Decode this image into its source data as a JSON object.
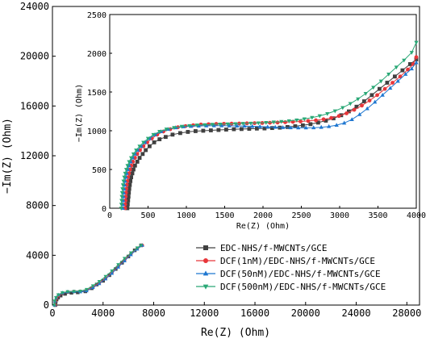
{
  "chart_data": {
    "type": "scatter",
    "main": {
      "xlabel": "Re(Z) (Ohm)",
      "ylabel": "−Im(Z) (Ohm)",
      "xlim": [
        0,
        29000
      ],
      "ylim": [
        0,
        24000
      ],
      "xticks": [
        "0",
        "4000",
        "8000",
        "12000",
        "16000",
        "20000",
        "24000",
        "28000"
      ],
      "yticks": [
        "0",
        "4000",
        "8000",
        "12000",
        "16000",
        "20000",
        "24000"
      ]
    },
    "inset": {
      "xlabel": "Re(Z) (Ohm)",
      "ylabel": "−Im(Z) (Ohm)",
      "xlim": [
        0,
        4000
      ],
      "ylim": [
        0,
        2500
      ],
      "xticks": [
        "0",
        "500",
        "1000",
        "1500",
        "2000",
        "2500",
        "3000",
        "3500",
        "4000"
      ],
      "yticks": [
        "0",
        "500",
        "1000",
        "1500",
        "2000",
        "2500"
      ]
    },
    "legend": {
      "position": "bottom-right"
    },
    "series": [
      {
        "name": "EDC-NHS/f-MWCNTs/GCE",
        "color": "#404040",
        "marker": "square",
        "main_points": [
          [
            230,
            0
          ],
          [
            260,
            250
          ],
          [
            330,
            450
          ],
          [
            450,
            600
          ],
          [
            650,
            760
          ],
          [
            1000,
            900
          ],
          [
            1500,
            990
          ],
          [
            2000,
            1020
          ],
          [
            2600,
            1100
          ],
          [
            3100,
            1350
          ],
          [
            3500,
            1650
          ],
          [
            4000,
            1950
          ],
          [
            4500,
            2400
          ],
          [
            5000,
            2900
          ],
          [
            5500,
            3400
          ],
          [
            6000,
            3900
          ],
          [
            6500,
            4400
          ],
          [
            7000,
            4800
          ]
        ],
        "inset_points": [
          [
            230,
            0
          ],
          [
            235,
            50
          ],
          [
            240,
            100
          ],
          [
            245,
            150
          ],
          [
            250,
            200
          ],
          [
            255,
            250
          ],
          [
            262,
            300
          ],
          [
            270,
            350
          ],
          [
            280,
            400
          ],
          [
            295,
            450
          ],
          [
            310,
            500
          ],
          [
            330,
            550
          ],
          [
            360,
            600
          ],
          [
            390,
            650
          ],
          [
            430,
            700
          ],
          [
            470,
            750
          ],
          [
            520,
            800
          ],
          [
            580,
            850
          ],
          [
            650,
            890
          ],
          [
            730,
            920
          ],
          [
            820,
            950
          ],
          [
            920,
            970
          ],
          [
            1020,
            985
          ],
          [
            1120,
            995
          ],
          [
            1220,
            1000
          ],
          [
            1320,
            1005
          ],
          [
            1420,
            1010
          ],
          [
            1520,
            1015
          ],
          [
            1620,
            1020
          ],
          [
            1720,
            1022
          ],
          [
            1820,
            1025
          ],
          [
            1920,
            1028
          ],
          [
            2020,
            1030
          ],
          [
            2120,
            1035
          ],
          [
            2220,
            1040
          ],
          [
            2320,
            1048
          ],
          [
            2420,
            1058
          ],
          [
            2520,
            1070
          ],
          [
            2620,
            1085
          ],
          [
            2720,
            1105
          ],
          [
            2820,
            1130
          ],
          [
            2920,
            1160
          ],
          [
            3020,
            1200
          ],
          [
            3120,
            1250
          ],
          [
            3220,
            1310
          ],
          [
            3320,
            1380
          ],
          [
            3420,
            1460
          ],
          [
            3520,
            1540
          ],
          [
            3620,
            1620
          ],
          [
            3720,
            1700
          ],
          [
            3820,
            1780
          ],
          [
            3920,
            1860
          ],
          [
            4000,
            1920
          ]
        ]
      },
      {
        "name": "DCF(1nM)/EDC-NHS/f-MWCNTs/GCE",
        "color": "#e8363a",
        "marker": "circle",
        "main_points": [
          [
            200,
            0
          ],
          [
            230,
            300
          ],
          [
            330,
            560
          ],
          [
            500,
            780
          ],
          [
            800,
            960
          ],
          [
            1200,
            1060
          ],
          [
            1700,
            1090
          ],
          [
            2200,
            1110
          ],
          [
            2700,
            1200
          ],
          [
            3200,
            1450
          ],
          [
            3700,
            1780
          ],
          [
            4200,
            2150
          ],
          [
            4700,
            2600
          ],
          [
            5200,
            3100
          ],
          [
            5700,
            3600
          ],
          [
            6200,
            4100
          ],
          [
            6700,
            4550
          ],
          [
            7100,
            4800
          ]
        ],
        "inset_points": [
          [
            200,
            0
          ],
          [
            202,
            50
          ],
          [
            205,
            100
          ],
          [
            208,
            150
          ],
          [
            212,
            200
          ],
          [
            217,
            250
          ],
          [
            223,
            300
          ],
          [
            230,
            350
          ],
          [
            240,
            400
          ],
          [
            252,
            450
          ],
          [
            266,
            500
          ],
          [
            283,
            550
          ],
          [
            303,
            600
          ],
          [
            330,
            650
          ],
          [
            360,
            700
          ],
          [
            395,
            750
          ],
          [
            440,
            800
          ],
          [
            490,
            850
          ],
          [
            550,
            900
          ],
          [
            620,
            950
          ],
          [
            700,
            990
          ],
          [
            790,
            1020
          ],
          [
            890,
            1045
          ],
          [
            990,
            1060
          ],
          [
            1090,
            1072
          ],
          [
            1190,
            1080
          ],
          [
            1290,
            1085
          ],
          [
            1390,
            1088
          ],
          [
            1490,
            1090
          ],
          [
            1590,
            1092
          ],
          [
            1690,
            1094
          ],
          [
            1790,
            1096
          ],
          [
            1890,
            1098
          ],
          [
            1990,
            1100
          ],
          [
            2090,
            1103
          ],
          [
            2190,
            1106
          ],
          [
            2290,
            1110
          ],
          [
            2390,
            1115
          ],
          [
            2490,
            1120
          ],
          [
            2590,
            1126
          ],
          [
            2690,
            1135
          ],
          [
            2790,
            1148
          ],
          [
            2890,
            1165
          ],
          [
            2990,
            1190
          ],
          [
            3090,
            1225
          ],
          [
            3190,
            1270
          ],
          [
            3290,
            1325
          ],
          [
            3390,
            1390
          ],
          [
            3490,
            1460
          ],
          [
            3590,
            1540
          ],
          [
            3690,
            1620
          ],
          [
            3790,
            1700
          ],
          [
            3890,
            1790
          ],
          [
            3960,
            1860
          ],
          [
            4000,
            1950
          ]
        ]
      },
      {
        "name": "DCF(50nM)/EDC-NHS/f-MWCNTs/GCE",
        "color": "#1f77d0",
        "marker": "triangle-up",
        "main_points": [
          [
            170,
            0
          ],
          [
            200,
            320
          ],
          [
            300,
            600
          ],
          [
            480,
            820
          ],
          [
            800,
            980
          ],
          [
            1200,
            1060
          ],
          [
            1700,
            1080
          ],
          [
            2200,
            1060
          ],
          [
            2700,
            1140
          ],
          [
            3200,
            1400
          ],
          [
            3700,
            1720
          ],
          [
            4200,
            2100
          ],
          [
            4700,
            2550
          ],
          [
            5200,
            3050
          ],
          [
            5700,
            3550
          ],
          [
            6200,
            4050
          ],
          [
            6700,
            4500
          ],
          [
            7100,
            4800
          ]
        ],
        "inset_points": [
          [
            170,
            0
          ],
          [
            172,
            50
          ],
          [
            175,
            100
          ],
          [
            178,
            150
          ],
          [
            182,
            200
          ],
          [
            187,
            250
          ],
          [
            193,
            300
          ],
          [
            200,
            350
          ],
          [
            210,
            400
          ],
          [
            222,
            450
          ],
          [
            236,
            500
          ],
          [
            253,
            550
          ],
          [
            273,
            600
          ],
          [
            300,
            650
          ],
          [
            330,
            700
          ],
          [
            365,
            750
          ],
          [
            410,
            800
          ],
          [
            460,
            850
          ],
          [
            520,
            900
          ],
          [
            590,
            950
          ],
          [
            670,
            990
          ],
          [
            760,
            1020
          ],
          [
            860,
            1040
          ],
          [
            960,
            1052
          ],
          [
            1060,
            1058
          ],
          [
            1160,
            1062
          ],
          [
            1260,
            1064
          ],
          [
            1360,
            1065
          ],
          [
            1460,
            1065
          ],
          [
            1560,
            1064
          ],
          [
            1660,
            1062
          ],
          [
            1760,
            1060
          ],
          [
            1860,
            1057
          ],
          [
            1960,
            1054
          ],
          [
            2060,
            1050
          ],
          [
            2160,
            1046
          ],
          [
            2260,
            1042
          ],
          [
            2360,
            1040
          ],
          [
            2460,
            1038
          ],
          [
            2560,
            1038
          ],
          [
            2660,
            1040
          ],
          [
            2760,
            1045
          ],
          [
            2860,
            1055
          ],
          [
            2960,
            1072
          ],
          [
            3060,
            1100
          ],
          [
            3160,
            1145
          ],
          [
            3260,
            1210
          ],
          [
            3360,
            1285
          ],
          [
            3460,
            1370
          ],
          [
            3560,
            1460
          ],
          [
            3660,
            1550
          ],
          [
            3760,
            1640
          ],
          [
            3860,
            1730
          ],
          [
            3940,
            1800
          ],
          [
            4000,
            1880
          ]
        ]
      },
      {
        "name": "DCF(500nM)/EDC-NHS/f-MWCNTs/GCE",
        "color": "#2aa876",
        "marker": "triangle-down",
        "main_points": [
          [
            150,
            0
          ],
          [
            180,
            320
          ],
          [
            280,
            600
          ],
          [
            460,
            830
          ],
          [
            780,
            1000
          ],
          [
            1200,
            1080
          ],
          [
            1700,
            1090
          ],
          [
            2200,
            1120
          ],
          [
            2700,
            1260
          ],
          [
            3200,
            1550
          ],
          [
            3700,
            1900
          ],
          [
            4200,
            2300
          ],
          [
            4700,
            2750
          ],
          [
            5200,
            3250
          ],
          [
            5700,
            3750
          ],
          [
            6200,
            4200
          ],
          [
            6700,
            4600
          ],
          [
            7000,
            4800
          ]
        ],
        "inset_points": [
          [
            150,
            0
          ],
          [
            152,
            50
          ],
          [
            155,
            100
          ],
          [
            158,
            150
          ],
          [
            162,
            200
          ],
          [
            167,
            250
          ],
          [
            173,
            300
          ],
          [
            180,
            350
          ],
          [
            190,
            400
          ],
          [
            202,
            450
          ],
          [
            216,
            500
          ],
          [
            233,
            550
          ],
          [
            253,
            600
          ],
          [
            280,
            650
          ],
          [
            310,
            700
          ],
          [
            345,
            750
          ],
          [
            390,
            800
          ],
          [
            440,
            850
          ],
          [
            500,
            900
          ],
          [
            570,
            950
          ],
          [
            650,
            990
          ],
          [
            740,
            1020
          ],
          [
            840,
            1040
          ],
          [
            940,
            1055
          ],
          [
            1040,
            1065
          ],
          [
            1140,
            1072
          ],
          [
            1240,
            1077
          ],
          [
            1340,
            1081
          ],
          [
            1440,
            1084
          ],
          [
            1540,
            1087
          ],
          [
            1640,
            1090
          ],
          [
            1740,
            1093
          ],
          [
            1840,
            1096
          ],
          [
            1940,
            1100
          ],
          [
            2040,
            1105
          ],
          [
            2140,
            1111
          ],
          [
            2240,
            1118
          ],
          [
            2340,
            1127
          ],
          [
            2440,
            1138
          ],
          [
            2540,
            1152
          ],
          [
            2640,
            1170
          ],
          [
            2740,
            1192
          ],
          [
            2840,
            1220
          ],
          [
            2940,
            1255
          ],
          [
            3040,
            1298
          ],
          [
            3140,
            1350
          ],
          [
            3240,
            1410
          ],
          [
            3340,
            1480
          ],
          [
            3440,
            1560
          ],
          [
            3540,
            1640
          ],
          [
            3640,
            1730
          ],
          [
            3740,
            1820
          ],
          [
            3840,
            1910
          ],
          [
            3940,
            2010
          ],
          [
            4000,
            2140
          ]
        ]
      }
    ]
  }
}
